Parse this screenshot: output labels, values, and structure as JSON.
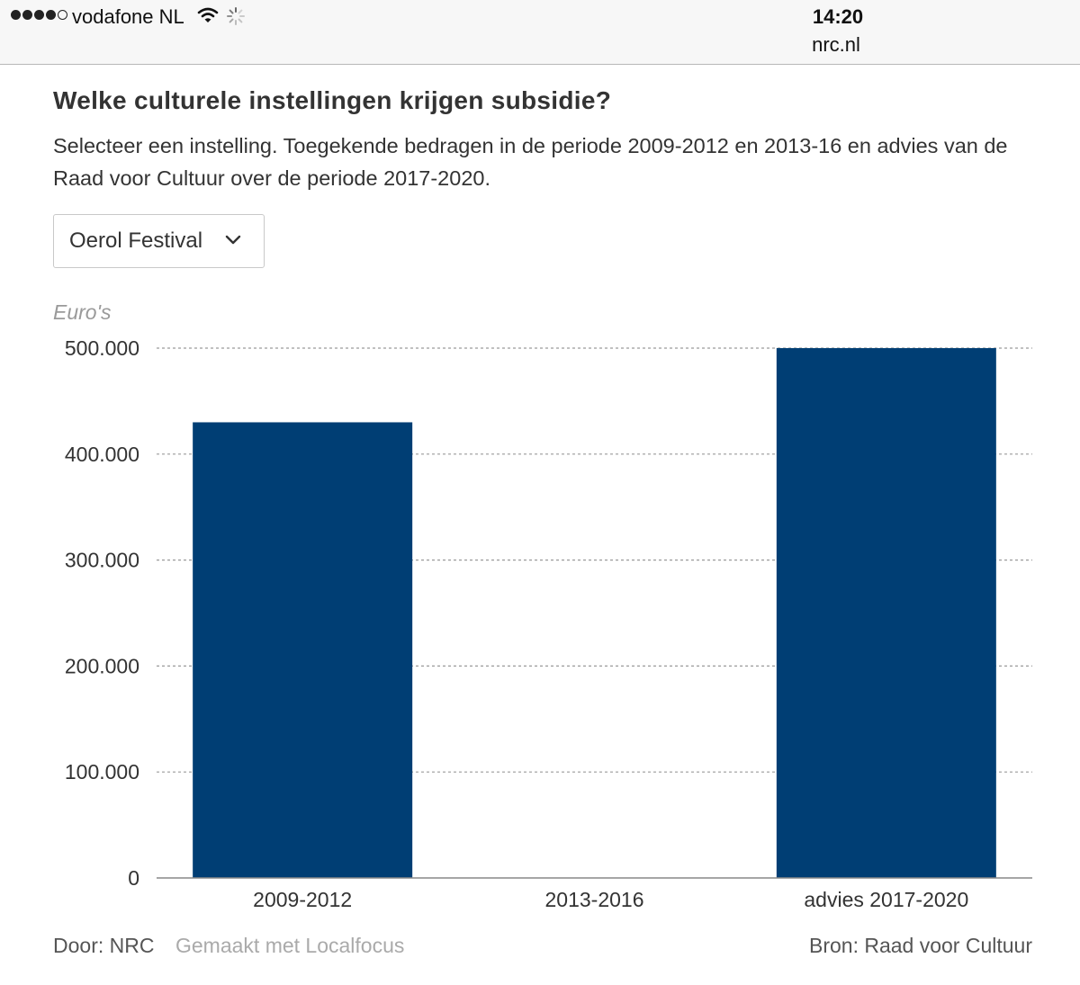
{
  "statusbar": {
    "carrier": "vodafone NL",
    "time": "14:20",
    "url": "nrc.nl",
    "signal_icon": "signal-dots-icon",
    "wifi_icon": "wifi-icon",
    "activity_icon": "activity-spinner-icon"
  },
  "header": {
    "title": "Welke culturele instellingen krijgen subsidie?",
    "subtitle": "Selecteer een instelling. Toegekende bedragen in de periode 2009-2012 en 2013-16 en advies van de Raad voor Cultuur over de periode 2017-2020."
  },
  "selector": {
    "selected": "Oerol Festival",
    "icon": "chevron-down-icon"
  },
  "footer": {
    "by": "Door: NRC",
    "made_with": "Gemaakt met Localfocus",
    "source": "Bron:  Raad voor Cultuur"
  },
  "colors": {
    "bar": "#003e74",
    "grid": "#9a9a9a",
    "axis": "#888888"
  },
  "chart_data": {
    "type": "bar",
    "title": "",
    "ylabel": "Euro's",
    "xlabel": "",
    "categories": [
      "2009-2012",
      "2013-2016",
      "advies 2017-2020"
    ],
    "values": [
      430000,
      0,
      500000
    ],
    "ylim": [
      0,
      500000
    ],
    "yticks": [
      0,
      100000,
      200000,
      300000,
      400000,
      500000
    ],
    "ytick_labels": [
      "0",
      "100.000",
      "200.000",
      "300.000",
      "400.000",
      "500.000"
    ],
    "grid": true,
    "legend": "none"
  }
}
